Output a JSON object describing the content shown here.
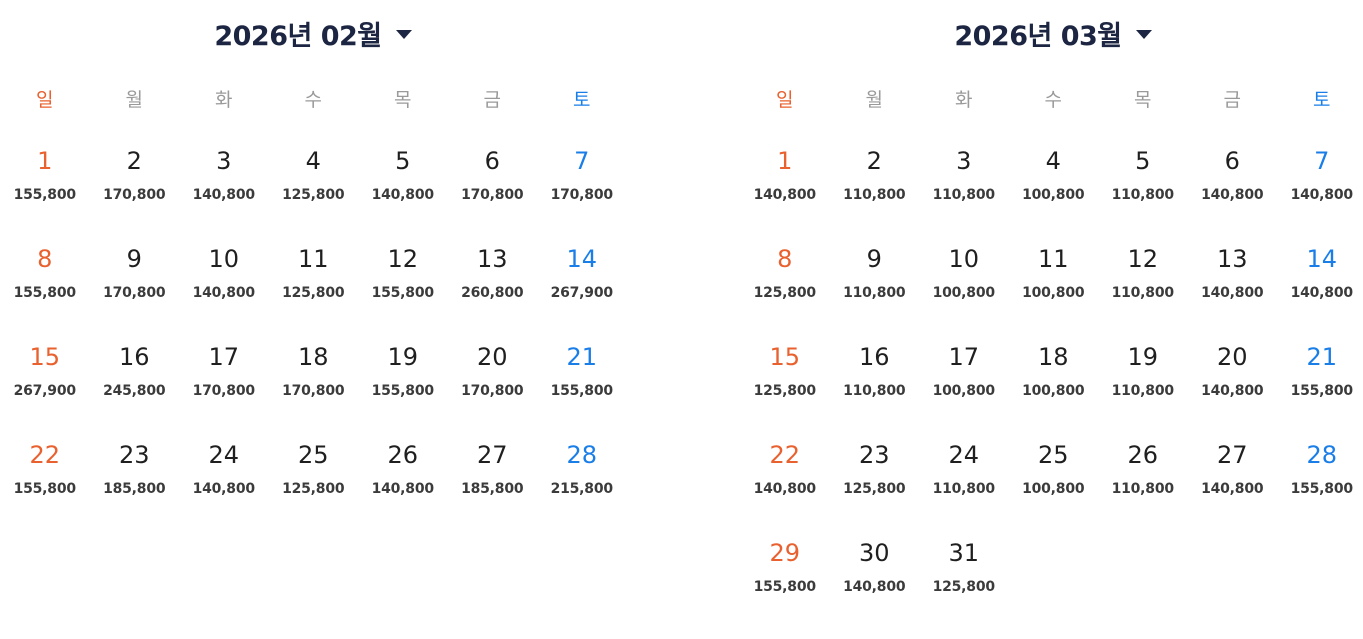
{
  "weekdays": [
    "일",
    "월",
    "화",
    "수",
    "목",
    "금",
    "토"
  ],
  "months": [
    {
      "title": "2026년 02월",
      "start_offset": 0,
      "days": [
        {
          "day": "1",
          "price": "155,800"
        },
        {
          "day": "2",
          "price": "170,800"
        },
        {
          "day": "3",
          "price": "140,800"
        },
        {
          "day": "4",
          "price": "125,800"
        },
        {
          "day": "5",
          "price": "140,800"
        },
        {
          "day": "6",
          "price": "170,800"
        },
        {
          "day": "7",
          "price": "170,800"
        },
        {
          "day": "8",
          "price": "155,800"
        },
        {
          "day": "9",
          "price": "170,800"
        },
        {
          "day": "10",
          "price": "140,800"
        },
        {
          "day": "11",
          "price": "125,800"
        },
        {
          "day": "12",
          "price": "155,800"
        },
        {
          "day": "13",
          "price": "260,800"
        },
        {
          "day": "14",
          "price": "267,900"
        },
        {
          "day": "15",
          "price": "267,900"
        },
        {
          "day": "16",
          "price": "245,800"
        },
        {
          "day": "17",
          "price": "170,800"
        },
        {
          "day": "18",
          "price": "170,800"
        },
        {
          "day": "19",
          "price": "155,800"
        },
        {
          "day": "20",
          "price": "170,800"
        },
        {
          "day": "21",
          "price": "155,800"
        },
        {
          "day": "22",
          "price": "155,800"
        },
        {
          "day": "23",
          "price": "185,800"
        },
        {
          "day": "24",
          "price": "140,800"
        },
        {
          "day": "25",
          "price": "125,800"
        },
        {
          "day": "26",
          "price": "140,800"
        },
        {
          "day": "27",
          "price": "185,800"
        },
        {
          "day": "28",
          "price": "215,800"
        }
      ]
    },
    {
      "title": "2026년 03월",
      "start_offset": 0,
      "days": [
        {
          "day": "1",
          "price": "140,800"
        },
        {
          "day": "2",
          "price": "110,800"
        },
        {
          "day": "3",
          "price": "110,800"
        },
        {
          "day": "4",
          "price": "100,800"
        },
        {
          "day": "5",
          "price": "110,800"
        },
        {
          "day": "6",
          "price": "140,800"
        },
        {
          "day": "7",
          "price": "140,800"
        },
        {
          "day": "8",
          "price": "125,800"
        },
        {
          "day": "9",
          "price": "110,800"
        },
        {
          "day": "10",
          "price": "100,800"
        },
        {
          "day": "11",
          "price": "100,800"
        },
        {
          "day": "12",
          "price": "110,800"
        },
        {
          "day": "13",
          "price": "140,800"
        },
        {
          "day": "14",
          "price": "140,800"
        },
        {
          "day": "15",
          "price": "125,800"
        },
        {
          "day": "16",
          "price": "110,800"
        },
        {
          "day": "17",
          "price": "100,800"
        },
        {
          "day": "18",
          "price": "100,800"
        },
        {
          "day": "19",
          "price": "110,800"
        },
        {
          "day": "20",
          "price": "140,800"
        },
        {
          "day": "21",
          "price": "155,800"
        },
        {
          "day": "22",
          "price": "140,800"
        },
        {
          "day": "23",
          "price": "125,800"
        },
        {
          "day": "24",
          "price": "110,800"
        },
        {
          "day": "25",
          "price": "100,800"
        },
        {
          "day": "26",
          "price": "110,800"
        },
        {
          "day": "27",
          "price": "140,800"
        },
        {
          "day": "28",
          "price": "155,800"
        },
        {
          "day": "29",
          "price": "155,800"
        },
        {
          "day": "30",
          "price": "140,800"
        },
        {
          "day": "31",
          "price": "125,800"
        }
      ]
    }
  ],
  "colors": {
    "sunday": "#e8612e",
    "saturday": "#1a7ee8",
    "weekday_header": "#9a9a9a",
    "title": "#1c2541"
  },
  "icons": {
    "month_dropdown": "caret-down-icon"
  }
}
